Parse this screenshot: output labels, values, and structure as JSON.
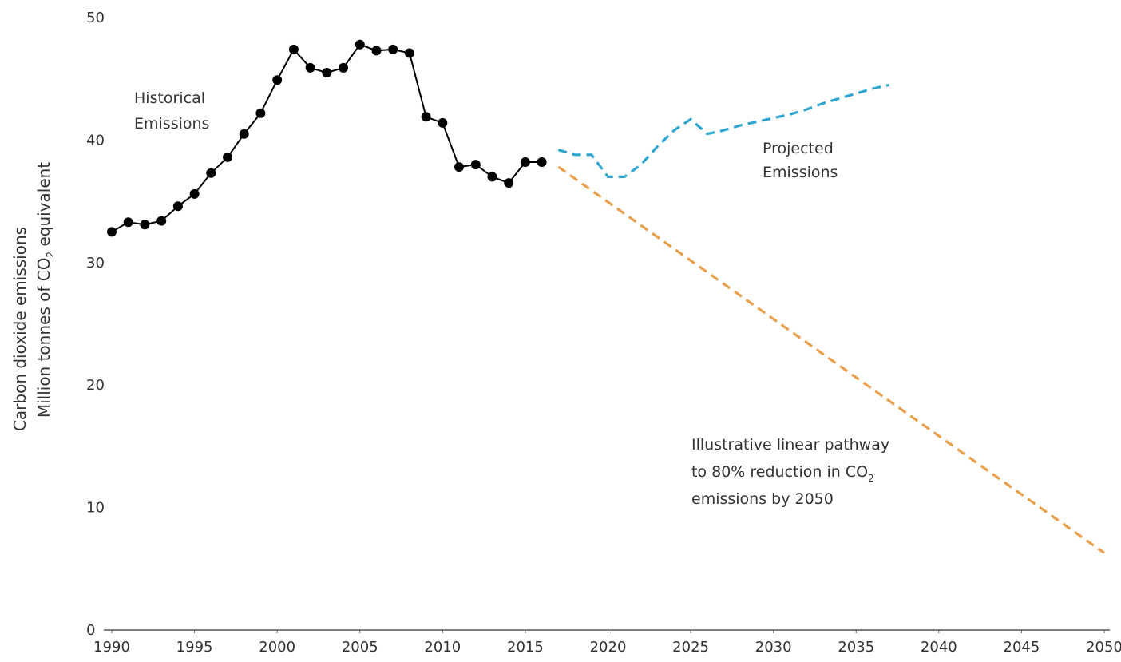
{
  "chart_data": {
    "type": "line",
    "xlim": [
      1990,
      2050
    ],
    "ylim": [
      0,
      50
    ],
    "x_ticks": [
      "1990",
      "1995",
      "2000",
      "2005",
      "2010",
      "2015",
      "2020",
      "2025",
      "2030",
      "2035",
      "2040",
      "2045",
      "2050"
    ],
    "y_ticks": [
      "0",
      "10",
      "20",
      "30",
      "40",
      "50"
    ],
    "ylabel_line1": "Carbon dioxide emissions",
    "ylabel_line2_pre": "Million tonnes of CO",
    "ylabel_line2_sub": "2",
    "ylabel_line2_post": " equivalent",
    "grid": false,
    "series": [
      {
        "key": "historical",
        "style": "solid-with-markers",
        "color": "#000000",
        "x": [
          1990,
          1991,
          1992,
          1993,
          1994,
          1995,
          1996,
          1997,
          1998,
          1999,
          2000,
          2001,
          2002,
          2003,
          2004,
          2005,
          2006,
          2007,
          2008,
          2009,
          2010,
          2011,
          2012,
          2013,
          2014,
          2015,
          2016
        ],
        "y": [
          32.5,
          33.3,
          33.1,
          33.4,
          34.6,
          35.6,
          37.3,
          38.6,
          40.5,
          42.2,
          44.9,
          47.4,
          45.9,
          45.5,
          45.9,
          47.8,
          47.3,
          47.4,
          47.1,
          41.9,
          41.4,
          37.8,
          38.0,
          37.0,
          36.5,
          38.2,
          38.2
        ]
      },
      {
        "key": "projected",
        "style": "dashed",
        "color": "#2fa6cf",
        "x": [
          2017,
          2018,
          2019,
          2020,
          2021,
          2022,
          2023,
          2024,
          2025,
          2026,
          2027,
          2028,
          2029,
          2030,
          2031,
          2032,
          2033,
          2034,
          2035,
          2036,
          2037
        ],
        "y": [
          39.2,
          38.8,
          38.8,
          37.0,
          37.0,
          38.0,
          39.5,
          40.8,
          41.7,
          40.5,
          40.8,
          41.2,
          41.5,
          41.8,
          42.1,
          42.5,
          43.0,
          43.4,
          43.8,
          44.2,
          44.5
        ]
      },
      {
        "key": "pathway",
        "style": "dashed",
        "color": "#e8a04c",
        "x": [
          2017,
          2050
        ],
        "y": [
          37.8,
          6.3
        ]
      }
    ],
    "annotations": [
      {
        "key": "historical",
        "lines": [
          "Historical",
          "Emissions"
        ]
      },
      {
        "key": "projected",
        "lines": [
          "Projected",
          "Emissions"
        ]
      },
      {
        "key": "pathway",
        "line1": "Illustrative linear pathway",
        "line2_pre": "to 80% reduction in CO",
        "line2_sub": "2",
        "line3": "emissions by 2050"
      }
    ]
  }
}
